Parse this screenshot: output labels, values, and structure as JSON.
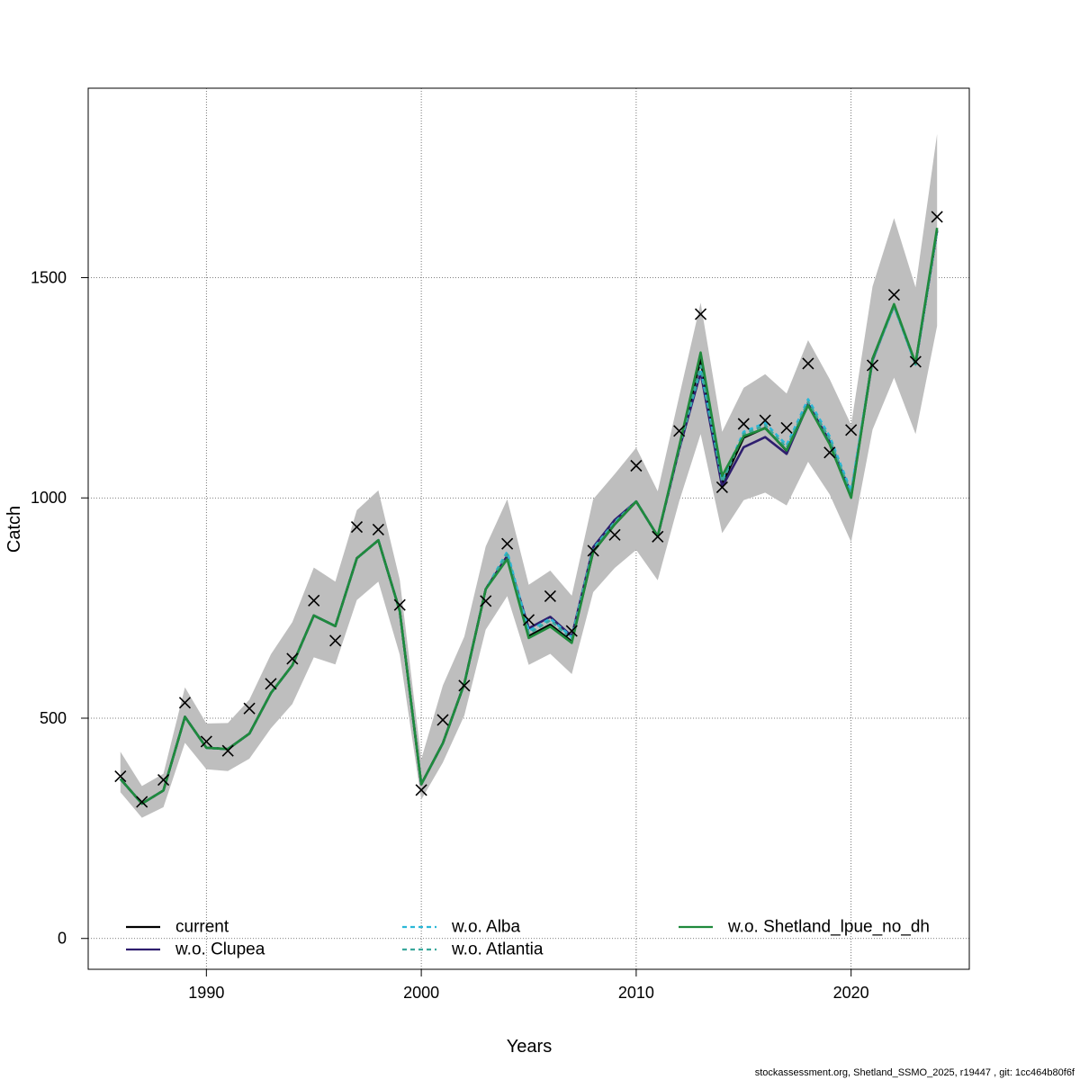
{
  "chart_data": {
    "type": "line",
    "title": "",
    "xlabel": "Years",
    "ylabel": "Catch",
    "xlim": [
      1984.5,
      2025.5
    ],
    "ylim": [
      -70,
      1930
    ],
    "x_ticks": [
      "1990",
      "2000",
      "2010",
      "2020"
    ],
    "y_ticks": [
      "0",
      "500",
      "1000",
      "1500"
    ],
    "grid": true,
    "years": [
      1986,
      1987,
      1988,
      1989,
      1990,
      1991,
      1992,
      1993,
      1994,
      1995,
      1996,
      1997,
      1998,
      1999,
      2000,
      2001,
      2002,
      2003,
      2004,
      2005,
      2006,
      2007,
      2008,
      2009,
      2010,
      2011,
      2012,
      2013,
      2014,
      2015,
      2016,
      2017,
      2018,
      2019,
      2020,
      2021,
      2022,
      2023,
      2024
    ],
    "confidence_band": {
      "upper": [
        424,
        346,
        374,
        570,
        488,
        489,
        542,
        645,
        718,
        842,
        810,
        972,
        1017,
        814,
        407,
        574,
        685,
        890,
        997,
        803,
        835,
        778,
        997,
        1054,
        1114,
        1015,
        1230,
        1443,
        1150,
        1250,
        1281,
        1237,
        1358,
        1270,
        1166,
        1480,
        1635,
        1478,
        1826
      ],
      "lower": [
        332,
        274,
        298,
        444,
        384,
        380,
        408,
        477,
        532,
        638,
        622,
        768,
        810,
        644,
        315,
        399,
        506,
        701,
        777,
        621,
        646,
        600,
        786,
        841,
        882,
        813,
        992,
        1145,
        920,
        995,
        1012,
        983,
        1082,
        1008,
        900,
        1155,
        1273,
        1145,
        1390
      ]
    },
    "series": [
      {
        "name": "current",
        "color": "#000000",
        "dash": "",
        "values": [
          362,
          306,
          336,
          503,
          433,
          430,
          465,
          557,
          620,
          733,
          709,
          863,
          904,
          743,
          350,
          443,
          578,
          793,
          868,
          686,
          712,
          674,
          878,
          940,
          992,
          913,
          1112,
          1315,
          1032,
          1137,
          1159,
          1107,
          1213,
          1128,
          1004,
          1316,
          1436,
          1305,
          1606
        ]
      },
      {
        "name": "w.o. Clupea",
        "color": "#2E1E6E",
        "dash": "",
        "values": [
          362,
          306,
          336,
          503,
          433,
          430,
          465,
          557,
          620,
          733,
          709,
          863,
          904,
          743,
          350,
          443,
          578,
          793,
          868,
          704,
          730,
          686,
          888,
          950,
          992,
          913,
          1110,
          1285,
          1025,
          1115,
          1138,
          1100,
          1213,
          1128,
          1010,
          1312,
          1438,
          1303,
          1608
        ]
      },
      {
        "name": "w.o. Alba",
        "color": "#2BB8D8",
        "dash": "5,4",
        "values": [
          362,
          306,
          336,
          503,
          433,
          430,
          465,
          557,
          620,
          733,
          709,
          863,
          904,
          743,
          350,
          443,
          578,
          793,
          878,
          698,
          726,
          684,
          885,
          945,
          992,
          913,
          1115,
          1292,
          1040,
          1150,
          1170,
          1120,
          1224,
          1140,
          1015,
          1314,
          1436,
          1303,
          1608
        ]
      },
      {
        "name": "w.o. Atlantia",
        "color": "#3BA89C",
        "dash": "5,4",
        "values": [
          362,
          306,
          336,
          503,
          433,
          430,
          465,
          557,
          620,
          733,
          709,
          863,
          904,
          743,
          350,
          443,
          578,
          793,
          872,
          692,
          722,
          680,
          882,
          943,
          992,
          913,
          1113,
          1300,
          1036,
          1145,
          1165,
          1114,
          1218,
          1134,
          1008,
          1314,
          1436,
          1304,
          1607
        ]
      },
      {
        "name": "w.o. Shetland_lpue_no_dh",
        "color": "#1F8A3C",
        "dash": "",
        "values": [
          362,
          306,
          336,
          503,
          433,
          430,
          465,
          557,
          620,
          733,
          709,
          863,
          904,
          743,
          350,
          443,
          578,
          793,
          861,
          682,
          708,
          671,
          878,
          940,
          992,
          913,
          1117,
          1330,
          1050,
          1140,
          1158,
          1108,
          1210,
          1122,
          1000,
          1316,
          1440,
          1306,
          1613
        ]
      }
    ],
    "observed": {
      "marker": "x",
      "values": [
        368,
        310,
        360,
        535,
        447,
        426,
        522,
        578,
        635,
        767,
        676,
        934,
        928,
        757,
        337,
        496,
        574,
        766,
        896,
        723,
        777,
        698,
        880,
        916,
        1073,
        912,
        1152,
        1417,
        1024,
        1168,
        1176,
        1159,
        1305,
        1103,
        1154,
        1301,
        1461,
        1309,
        1638
      ]
    },
    "legend": {
      "position": "bottom",
      "entries": [
        "current",
        "w.o. Clupea",
        "w.o. Alba",
        "w.o. Atlantia",
        "w.o. Shetland_lpue_no_dh"
      ]
    },
    "footer": "stockassessment.org, Shetland_SSMO_2025, r19447 , git: 1cc464b80f6f"
  }
}
